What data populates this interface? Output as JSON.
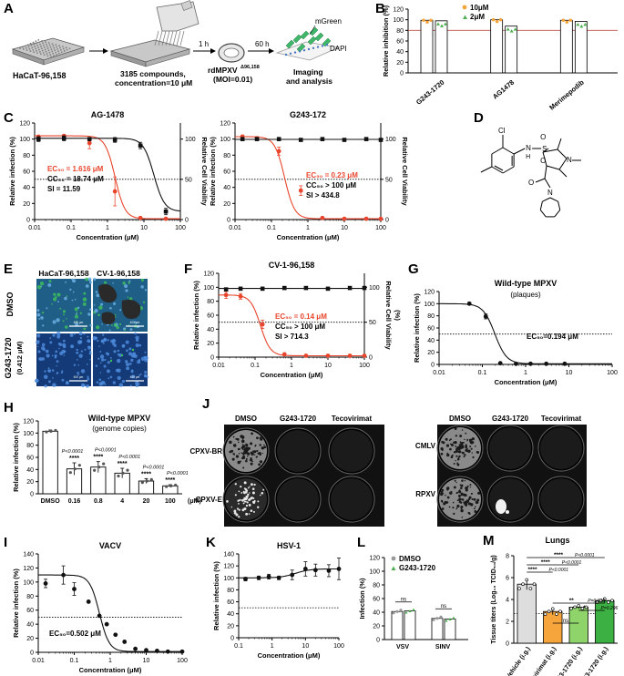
{
  "panels": {
    "A": {
      "letter": "A",
      "plate": "HaCaT-96,158",
      "compounds": "3185 compounds,",
      "conc": "concentration=10 μM",
      "t1": "1 h",
      "t2": "60 h",
      "virus": "rdMPXV",
      "virus_sup": "Δ96,158",
      "moi": "(MOI=0.01)",
      "mgreen": "mGreen",
      "dapi": "DAPI",
      "imaging": "Imaging",
      "analysis": "and analysis"
    },
    "B": {
      "letter": "B",
      "ylabel": "Relative inhibition (%)",
      "legend": [
        "10μM",
        "2μM"
      ],
      "yticks": [
        "0",
        "20",
        "40",
        "60",
        "80",
        "100",
        "120"
      ],
      "compounds": [
        "G243-1720",
        "AG1478",
        "Merimepodib"
      ]
    },
    "C": {
      "letter": "C"
    },
    "D": {
      "letter": "D",
      "atoms": {
        "cl": "Cl",
        "nh": "N",
        "h": "H",
        "s": "S",
        "o1": "O",
        "o2": "O",
        "n1": "N",
        "o3": "O",
        "n2": "N"
      }
    },
    "E": {
      "letter": "E",
      "col1": "HaCaT-96,158",
      "col2": "CV-1-96,158",
      "row1": "DMSO",
      "row2": "G243-1720",
      "row2b": "(0.412 μM)",
      "scale": "400 μm"
    },
    "F": {
      "letter": "F"
    },
    "G": {
      "letter": "G"
    },
    "H": {
      "letter": "H",
      "title": "Wild-type MPXV",
      "subtitle": "(genome copies)",
      "ylabel": "Relative infection (%)",
      "yticks": [
        "0",
        "20",
        "40",
        "60",
        "80",
        "100",
        "120"
      ],
      "xlabels": [
        "DMSO",
        "0.16",
        "0.8",
        "4",
        "20",
        "100"
      ],
      "unit": "(μM)",
      "stars": [
        "****",
        "****",
        "****",
        "****",
        "****"
      ],
      "pvals": [
        "P<0.0001",
        "P<0.0001",
        "P<0.0001",
        "P<0.0001",
        "P<0.0001"
      ]
    },
    "J": {
      "letter": "J",
      "cols": [
        "DMSO",
        "G243-1720",
        "Tecovirimat"
      ],
      "rows_left": [
        "CPXV-BR",
        "CPXV-E"
      ],
      "rows_right": [
        "CMLV",
        "RPXV"
      ]
    },
    "I": {
      "letter": "I"
    },
    "K": {
      "letter": "K"
    },
    "L": {
      "letter": "L",
      "ylabel": "Infection (%)",
      "legend": [
        "DMSO",
        "G243-1720"
      ],
      "yticks": [
        "0",
        "20",
        "40",
        "60",
        "80",
        "100",
        "120"
      ],
      "groups": [
        "VSV",
        "SINV"
      ],
      "ns": [
        "ns",
        "ns"
      ]
    },
    "M": {
      "letter": "M",
      "title": "Lungs",
      "ylabel": "Tissue titers (Log₁₀ TCID₅₀/g)",
      "yticks": [
        "0",
        "2",
        "4",
        "6",
        "8"
      ],
      "groups": [
        "Vehicle (i.g.)",
        "Tecovirimat (i.g.)",
        "G243-1720 (i.g.)",
        "G243-1720 (i.g.)"
      ],
      "stats": [
        "****",
        "P<0.0001",
        "****",
        "P<0.0001",
        "****",
        "P<0.0001",
        "**",
        "P=0.010",
        "*",
        "P=0.296",
        "ns"
      ]
    }
  },
  "curves": {
    "C1": {
      "title": "AG-1478",
      "ylabel": "Relative infection (%)",
      "ylabel2": "Relative Cell Viability",
      "xlabel": "Concentration (μM)",
      "ec": "EC₅₀ = 1.616 μM",
      "cc": "CC₅₀ = 18.74 μM",
      "si": "SI = 11.59",
      "yticks": [
        "0",
        "20",
        "40",
        "60",
        "80",
        "100",
        "120"
      ],
      "xticks": [
        "0.01",
        "0.1",
        "1",
        "10",
        "100"
      ],
      "y2ticks": [
        "0",
        "50",
        "100"
      ]
    },
    "C2": {
      "title": "G243-172",
      "ylabel": "Relative infection (%)",
      "ylabel2": "Relative Cell Viability",
      "xlabel": "Concentration (μM)",
      "ec": "EC₅₀ = 0.23 μM",
      "cc": "CC₅₀ > 100 μM",
      "si": "SI > 434.8",
      "yticks": [
        "0",
        "20",
        "40",
        "60",
        "80",
        "100",
        "120"
      ],
      "xticks": [
        "0.01",
        "0.1",
        "1",
        "10",
        "100"
      ],
      "y2ticks": [
        "0",
        "50",
        "100"
      ]
    },
    "F": {
      "title": "CV-1-96,158",
      "ylabel": "Relative infection (%)",
      "ylabel2": "Relative Cell Viability",
      "ylabel2b": "(%)",
      "xlabel": "Concentration (μM)",
      "ec": "EC₅₀ = 0.14 μM",
      "cc": "CC₅₀ > 100 μM",
      "si": "SI > 714.3",
      "yticks": [
        "0",
        "20",
        "40",
        "60",
        "80",
        "100",
        "120"
      ],
      "xticks": [
        "0.01",
        "0.1",
        "1",
        "10",
        "100"
      ],
      "y2ticks": [
        "0",
        "50",
        "100"
      ]
    },
    "G": {
      "title": "Wild-type MPXV",
      "subtitle": "(plaques)",
      "ylabel": "Relative infection (%)",
      "xlabel": "Concentration (μM)",
      "ec": "EC₅₀=0.194 μM",
      "yticks": [
        "0",
        "20",
        "40",
        "60",
        "80",
        "100",
        "120"
      ],
      "xticks": [
        "0.01",
        "0.1",
        "1",
        "10",
        "100"
      ]
    },
    "I": {
      "title": "VACV",
      "ylabel": "Relative infection (%)",
      "xlabel": "Concentration (μM)",
      "ec": "EC₅₀=0.502 μM",
      "yticks": [
        "0",
        "20",
        "40",
        "60",
        "80",
        "100",
        "120",
        "140"
      ],
      "xticks": [
        "0.01",
        "0.1",
        "1",
        "10",
        "100"
      ]
    },
    "K": {
      "title": "HSV-1",
      "ylabel": "Relative infection (%)",
      "xlabel": "Concentration (μM)",
      "yticks": [
        "0",
        "20",
        "40",
        "60",
        "80",
        "100",
        "120",
        "140"
      ],
      "xticks": [
        "0.1",
        "1",
        "10",
        "100"
      ]
    }
  },
  "chart_data": [
    {
      "type": "bar",
      "id": "B",
      "categories": [
        "G243-1720",
        "AG1478",
        "Merimepodib"
      ],
      "series": [
        {
          "name": "10μM",
          "values": [
            99,
            100,
            99
          ],
          "color": "#f5a53c"
        },
        {
          "name": "2μM",
          "values": [
            98,
            88,
            97
          ],
          "color": "#4caf50"
        }
      ],
      "ylim": [
        0,
        120
      ],
      "threshold": 80
    },
    {
      "type": "line",
      "id": "C1",
      "log_x": true,
      "xlim": [
        0.01,
        100
      ],
      "ylim": [
        0,
        120
      ],
      "series": [
        {
          "name": "infection",
          "color": "#e8452c",
          "x": [
            0.0128,
            0.064,
            0.32,
            1.6,
            8,
            40
          ],
          "y": [
            103,
            104,
            95,
            35,
            2,
            1
          ],
          "ec50": 1.616
        },
        {
          "name": "viability",
          "color": "#111111",
          "x": [
            0.0128,
            0.064,
            0.32,
            1.6,
            8,
            40
          ],
          "y": [
            100,
            101,
            100,
            99,
            92,
            10
          ],
          "ec50": 18.74,
          "axis": "right"
        }
      ]
    },
    {
      "type": "line",
      "id": "C2",
      "log_x": true,
      "xlim": [
        0.01,
        100
      ],
      "ylim": [
        0,
        120
      ],
      "series": [
        {
          "name": "infection",
          "color": "#e8452c",
          "x": [
            0.016,
            0.04,
            0.16,
            0.64,
            2.5,
            10,
            40,
            100
          ],
          "y": [
            103,
            101,
            85,
            36,
            2,
            1,
            1,
            1
          ],
          "ec50": 0.23
        },
        {
          "name": "viability",
          "color": "#111111",
          "x": [
            0.016,
            0.04,
            0.16,
            0.64,
            2.5,
            10,
            40,
            100
          ],
          "y": [
            100,
            100,
            100,
            99,
            100,
            99,
            100,
            99
          ],
          "axis": "right"
        }
      ]
    },
    {
      "type": "line",
      "id": "F",
      "log_x": true,
      "xlim": [
        0.01,
        100
      ],
      "ylim": [
        0,
        120
      ],
      "series": [
        {
          "name": "infection",
          "color": "#e8452c",
          "x": [
            0.016,
            0.04,
            0.16,
            0.64,
            2.5,
            10,
            40,
            100
          ],
          "y": [
            89,
            87,
            47,
            4,
            2,
            2,
            2,
            2
          ],
          "ec50": 0.14
        },
        {
          "name": "viability",
          "color": "#111111",
          "x": [
            0.016,
            0.04,
            0.16,
            0.64,
            2.5,
            10,
            40,
            100
          ],
          "y": [
            97,
            98,
            98,
            99,
            99,
            98,
            99,
            99
          ],
          "axis": "right"
        }
      ]
    },
    {
      "type": "line",
      "id": "G",
      "log_x": true,
      "xlim": [
        0.01,
        100
      ],
      "ylim": [
        0,
        120
      ],
      "series": [
        {
          "name": "infection",
          "color": "#111111",
          "x": [
            0.05,
            0.12,
            0.26,
            0.6,
            1.3,
            3,
            8
          ],
          "y": [
            100,
            79,
            2,
            1,
            1,
            1,
            1
          ],
          "ec50": 0.194
        }
      ]
    },
    {
      "type": "bar",
      "id": "H",
      "categories": [
        "DMSO",
        "0.16",
        "0.8",
        "4",
        "20",
        "100"
      ],
      "values": [
        103,
        41,
        44,
        34,
        21,
        13
      ],
      "ylim": [
        0,
        120
      ]
    },
    {
      "type": "line",
      "id": "I",
      "log_x": true,
      "xlim": [
        0.01,
        100
      ],
      "ylim": [
        0,
        140
      ],
      "series": [
        {
          "name": "infection",
          "color": "#111111",
          "x": [
            0.016,
            0.05,
            0.1,
            0.25,
            0.5,
            0.8,
            1.4,
            2.5,
            5,
            10,
            20,
            40,
            100
          ],
          "y": [
            98,
            110,
            90,
            72,
            52,
            40,
            25,
            15,
            5,
            3,
            2,
            1,
            1
          ],
          "ec50": 0.502
        }
      ]
    },
    {
      "type": "line",
      "id": "K",
      "log_x": true,
      "xlim": [
        0.1,
        100
      ],
      "ylim": [
        0,
        140
      ],
      "series": [
        {
          "name": "infection",
          "color": "#111111",
          "x": [
            0.16,
            0.4,
            0.8,
            1.6,
            4,
            10,
            20,
            50,
            100
          ],
          "y": [
            98,
            100,
            102,
            100,
            105,
            115,
            113,
            112,
            115
          ]
        }
      ]
    },
    {
      "type": "bar",
      "id": "L",
      "categories": [
        "VSV",
        "SINV"
      ],
      "series": [
        {
          "name": "DMSO",
          "values": [
            41,
            31
          ],
          "color": "#999999"
        },
        {
          "name": "G243-1720",
          "values": [
            42,
            30
          ],
          "color": "#4caf50"
        }
      ],
      "ylim": [
        0,
        120
      ]
    },
    {
      "type": "bar",
      "id": "M",
      "categories": [
        "Vehicle (i.g.)",
        "Tecovirimat (i.g.)",
        "G243-1720 (i.g.)",
        "G243-1720 (i.g.)"
      ],
      "values": [
        5.4,
        2.9,
        3.3,
        3.9
      ],
      "colors": [
        "#dddddd",
        "#f5a53c",
        "#8fd46b",
        "#3cb043"
      ],
      "ylim": [
        0,
        8
      ],
      "lod": 2.7
    }
  ]
}
